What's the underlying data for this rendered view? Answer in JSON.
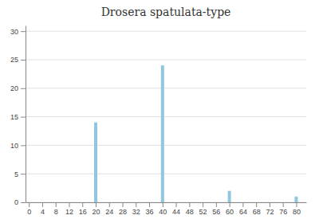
{
  "chart_data": {
    "type": "bar",
    "title": "Drosera spatulata-type",
    "x": [
      20,
      40,
      60,
      80
    ],
    "values": [
      14,
      24,
      2,
      1
    ],
    "color": "#92c5de",
    "xlim": [
      -1,
      83
    ],
    "xticks": [
      0,
      4,
      8,
      12,
      16,
      20,
      24,
      28,
      32,
      36,
      40,
      44,
      48,
      52,
      56,
      60,
      64,
      68,
      72,
      76,
      80
    ],
    "ylim": [
      0,
      31
    ],
    "yticks": [
      0,
      5,
      10,
      15,
      20,
      25,
      30
    ],
    "grid": true
  }
}
